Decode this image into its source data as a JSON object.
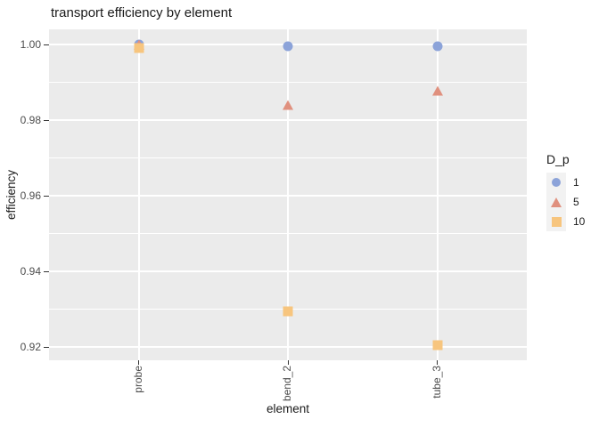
{
  "chart_data": {
    "type": "scatter",
    "title": "transport efficiency by element",
    "xlabel": "element",
    "ylabel": "efficiency",
    "categories": [
      "probe",
      "bend_2",
      "tube_3"
    ],
    "series": [
      {
        "name": "1",
        "marker": "circle",
        "color": "#8CA3D9",
        "values": [
          1.0,
          0.9995,
          0.9995
        ]
      },
      {
        "name": "5",
        "marker": "triangle",
        "color": "#E0907E",
        "values": [
          0.9999,
          0.984,
          0.9877
        ]
      },
      {
        "name": "10",
        "marker": "square",
        "color": "#F7C57E",
        "values": [
          0.999,
          0.9295,
          0.9205
        ]
      }
    ],
    "ylim": [
      0.9165,
      1.004
    ],
    "yticks": [
      1.0,
      0.98,
      0.96,
      0.94,
      0.92
    ],
    "ytick_labels": [
      "1.00",
      "0.98",
      "0.96",
      "0.94",
      "0.92"
    ],
    "yminor": [
      0.99,
      0.97,
      0.95,
      0.93
    ],
    "legend_title": "D_p",
    "legend_position": "right",
    "grid": true
  },
  "colors": {
    "background": "#FFFFFF",
    "panel_bg": "#EBEBEB",
    "grid": "#FFFFFF",
    "tick": "#333333",
    "tick_label": "#4D4D4D",
    "text": "#1A1A1A",
    "legend_key_bg": "#F2F2F2"
  }
}
